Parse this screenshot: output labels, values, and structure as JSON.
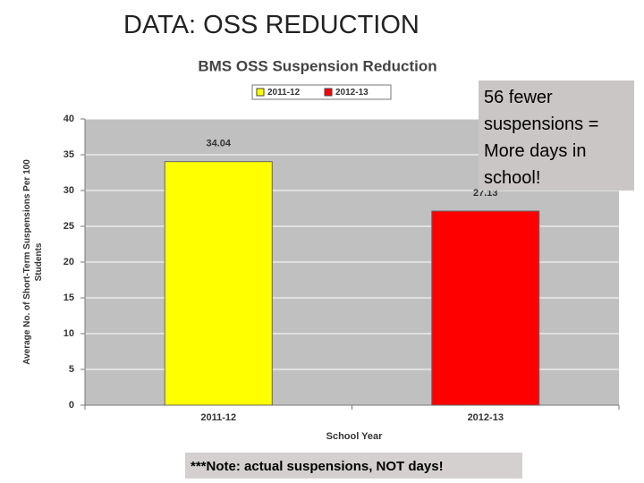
{
  "slide_title": "DATA:  OSS REDUCTION",
  "callout": "56 fewer suspensions = More days in school!",
  "note": "***Note:  actual suspensions, NOT days!",
  "chart_data": {
    "type": "bar",
    "title": "BMS OSS Suspension Reduction",
    "categories": [
      "2011-12",
      "2012-13"
    ],
    "values": [
      34.04,
      27.13
    ],
    "colors": [
      "#ffff00",
      "#ff0000"
    ],
    "xlabel": "School Year",
    "ylabel": [
      "Average No. of Short-Term Suspensions Per 100",
      "Students"
    ],
    "ylim": [
      0,
      40
    ],
    "yticks": [
      0,
      5,
      10,
      15,
      20,
      25,
      30,
      35,
      40
    ],
    "grid": true
  }
}
